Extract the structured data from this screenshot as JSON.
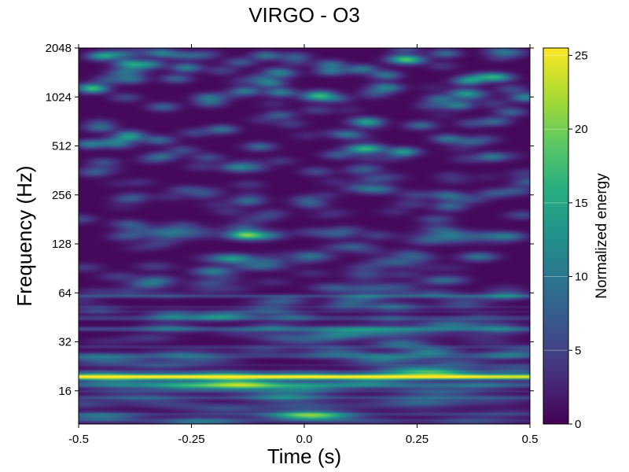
{
  "chart_data": {
    "type": "heatmap",
    "title": "VIRGO - O3",
    "xlabel": "Time (s)",
    "ylabel": "Frequency (Hz)",
    "xlim": [
      -0.5,
      0.5
    ],
    "ylim": [
      10,
      2048
    ],
    "yscale": "log2",
    "x_ticks": [
      -0.5,
      -0.25,
      0.0,
      0.25,
      0.5
    ],
    "x_tick_labels": [
      "-0.5",
      "-0.25",
      "0.0",
      "0.25",
      "0.5"
    ],
    "y_ticks": [
      16,
      32,
      64,
      128,
      256,
      512,
      1024,
      2048
    ],
    "y_tick_labels": [
      "16",
      "32",
      "64",
      "128",
      "256",
      "512",
      "1024",
      "2048"
    ],
    "colormap": "viridis",
    "colorbar": {
      "label": "Normalized energy",
      "range": [
        0,
        25.5
      ],
      "ticks": [
        0,
        5,
        10,
        15,
        20,
        25
      ],
      "tick_labels": [
        "0",
        "5",
        "10",
        "15",
        "20",
        "25"
      ]
    },
    "features": [
      {
        "type": "line",
        "frequency": 19.5,
        "time_start": -0.5,
        "time_end": 0.5,
        "energy": 25
      },
      {
        "type": "blob",
        "frequency": 37,
        "time_start": 0.0,
        "time_end": 0.3,
        "energy": 10
      },
      {
        "type": "blob",
        "frequency": 150,
        "time_start": -0.35,
        "time_end": -0.2,
        "energy": 8
      },
      {
        "type": "blob",
        "frequency": 140,
        "time_start": 0.25,
        "time_end": 0.4,
        "energy": 8
      }
    ]
  }
}
